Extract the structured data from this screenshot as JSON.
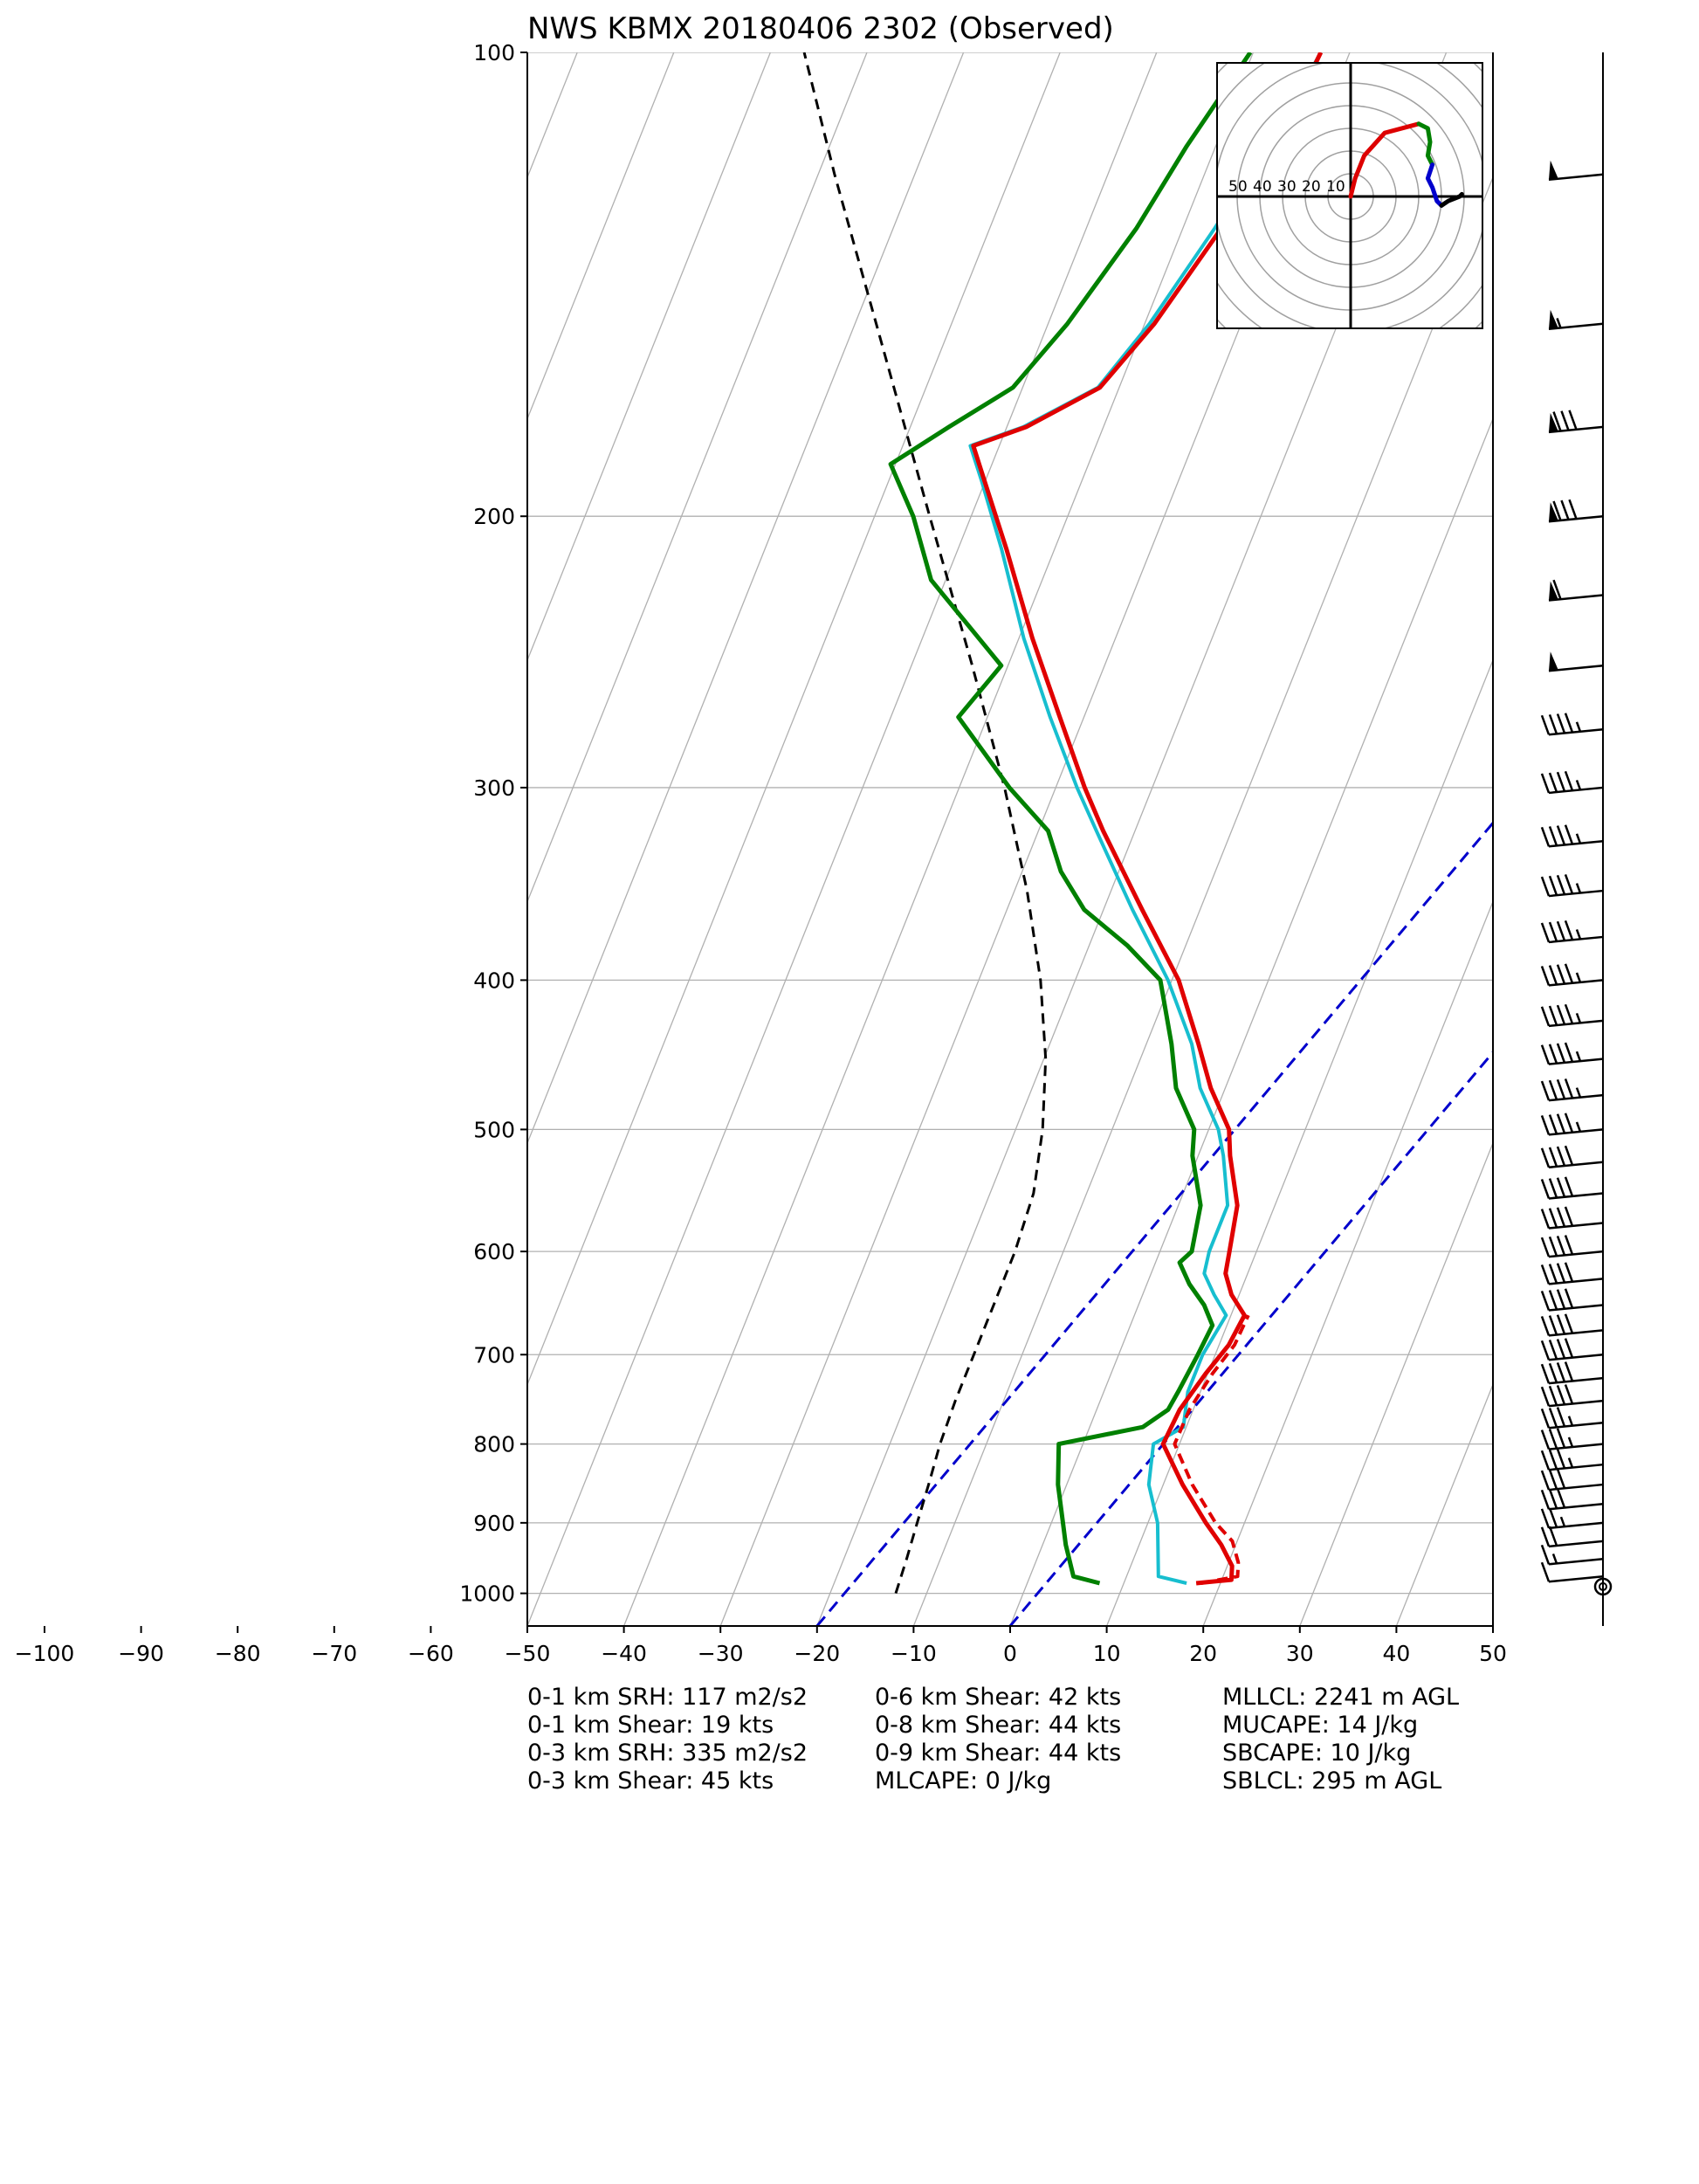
{
  "title": "NWS KBMX 20180406 2302   (Observed)",
  "chart_data": {
    "type": "skew-t",
    "title": "NWS KBMX 20180406 2302   (Observed)",
    "pressure_ticks": [
      100,
      200,
      300,
      400,
      500,
      600,
      700,
      800,
      900,
      1000
    ],
    "temperature_ticks": [
      -100,
      -90,
      -80,
      -70,
      -60,
      -50,
      -40,
      -30,
      -20,
      -10,
      0,
      10,
      20,
      30,
      40,
      50
    ],
    "plot_xlim": [
      -50,
      50
    ],
    "plot_ylim": [
      1050,
      100
    ],
    "grid": true,
    "temperature_profile": [
      [
        985,
        17.5
      ],
      [
        980,
        21.0
      ],
      [
        960,
        20.5
      ],
      [
        930,
        18.5
      ],
      [
        900,
        16.0
      ],
      [
        850,
        12.0
      ],
      [
        800,
        8.3
      ],
      [
        760,
        8.6
      ],
      [
        720,
        9.8
      ],
      [
        690,
        11.0
      ],
      [
        660,
        11.4
      ],
      [
        640,
        9.2
      ],
      [
        620,
        7.7
      ],
      [
        600,
        7.2
      ],
      [
        560,
        6.1
      ],
      [
        520,
        3.3
      ],
      [
        500,
        2.1
      ],
      [
        470,
        -1.5
      ],
      [
        440,
        -4.6
      ],
      [
        400,
        -9.3
      ],
      [
        360,
        -16.0
      ],
      [
        320,
        -23.3
      ],
      [
        300,
        -27.0
      ],
      [
        270,
        -32.5
      ],
      [
        240,
        -38.6
      ],
      [
        210,
        -45.0
      ],
      [
        190,
        -50.0
      ],
      [
        180,
        -52.7
      ],
      [
        175,
        -48.0
      ],
      [
        165,
        -42.0
      ],
      [
        150,
        -39.0
      ],
      [
        130,
        -36.0
      ],
      [
        110,
        -33.5
      ],
      [
        100,
        -33.0
      ]
    ],
    "virtual_temperature_profile": [
      [
        985,
        18.0
      ],
      [
        975,
        21.5
      ],
      [
        955,
        21.0
      ],
      [
        925,
        19.5
      ],
      [
        900,
        17.0
      ],
      [
        850,
        13.0
      ],
      [
        800,
        9.5
      ],
      [
        760,
        9.6
      ],
      [
        720,
        10.5
      ],
      [
        690,
        11.6
      ],
      [
        660,
        11.8
      ]
    ],
    "wetbulb_profile": [
      [
        985,
        16.5
      ],
      [
        975,
        13.3
      ],
      [
        900,
        11.0
      ],
      [
        850,
        8.5
      ],
      [
        800,
        7.3
      ],
      [
        780,
        9.7
      ],
      [
        740,
        8.7
      ],
      [
        700,
        8.7
      ],
      [
        660,
        9.5
      ],
      [
        640,
        7.4
      ],
      [
        620,
        5.5
      ],
      [
        600,
        5.1
      ],
      [
        560,
        5.1
      ],
      [
        520,
        2.6
      ],
      [
        500,
        1.0
      ],
      [
        470,
        -2.6
      ],
      [
        440,
        -5.3
      ],
      [
        400,
        -10.4
      ],
      [
        360,
        -17.0
      ],
      [
        320,
        -24.0
      ],
      [
        300,
        -27.8
      ],
      [
        270,
        -33.5
      ],
      [
        240,
        -39.5
      ],
      [
        210,
        -45.5
      ],
      [
        190,
        -50.3
      ],
      [
        180,
        -53.0
      ],
      [
        175,
        -48.3
      ],
      [
        165,
        -42.2
      ],
      [
        150,
        -39.5
      ],
      [
        130,
        -36.7
      ],
      [
        110,
        -34.0
      ],
      [
        100,
        -33.0
      ]
    ],
    "dewpoint_profile": [
      [
        985,
        7.5
      ],
      [
        975,
        4.5
      ],
      [
        930,
        2.4
      ],
      [
        900,
        1.2
      ],
      [
        850,
        -0.9
      ],
      [
        800,
        -2.5
      ],
      [
        780,
        5.5
      ],
      [
        760,
        7.4
      ],
      [
        740,
        7.7
      ],
      [
        700,
        8.2
      ],
      [
        670,
        8.5
      ],
      [
        650,
        6.8
      ],
      [
        630,
        4.4
      ],
      [
        610,
        2.5
      ],
      [
        600,
        3.3
      ],
      [
        560,
        2.3
      ],
      [
        520,
        -0.6
      ],
      [
        500,
        -1.5
      ],
      [
        470,
        -5.1
      ],
      [
        440,
        -7.4
      ],
      [
        400,
        -11.2
      ],
      [
        380,
        -16.0
      ],
      [
        360,
        -22.0
      ],
      [
        340,
        -26.0
      ],
      [
        320,
        -29.0
      ],
      [
        300,
        -34.8
      ],
      [
        270,
        -43.0
      ],
      [
        250,
        -40.7
      ],
      [
        220,
        -51.5
      ],
      [
        200,
        -56.0
      ],
      [
        185,
        -60.5
      ],
      [
        175,
        -56.0
      ],
      [
        165,
        -51.0
      ],
      [
        150,
        -48.0
      ],
      [
        130,
        -44.8
      ],
      [
        115,
        -43.0
      ],
      [
        100,
        -40.3
      ]
    ],
    "parcel_profile": [
      [
        1000,
        -13.2
      ],
      [
        950,
        -13.5
      ],
      [
        900,
        -13.9
      ],
      [
        850,
        -14.3
      ],
      [
        800,
        -14.8
      ],
      [
        750,
        -15.0
      ],
      [
        700,
        -15.0
      ],
      [
        650,
        -15.0
      ],
      [
        600,
        -15.0
      ],
      [
        550,
        -15.5
      ],
      [
        500,
        -17.2
      ],
      [
        450,
        -19.8
      ],
      [
        400,
        -23.6
      ],
      [
        350,
        -28.7
      ],
      [
        300,
        -35.3
      ],
      [
        250,
        -43.7
      ],
      [
        200,
        -54.3
      ],
      [
        150,
        -67.8
      ],
      [
        120,
        -78.3
      ],
      [
        100,
        -86.5
      ]
    ],
    "dry_adiabat_reference_lines": [
      {
        "name": "blue-dashed-left",
        "points": [
          [
            1050,
            -20
          ],
          [
            100,
            52
          ]
        ]
      },
      {
        "name": "blue-dashed-right",
        "points": [
          [
            1050,
            0
          ],
          [
            100,
            72
          ]
        ]
      }
    ],
    "hodograph": {
      "ring_labels": [
        "50",
        "40",
        "30",
        "20",
        "10"
      ],
      "segments": [
        {
          "color": "#dd0000",
          "points": [
            [
              0,
              0
            ],
            [
              2,
              8
            ],
            [
              6,
              18
            ],
            [
              15,
              28
            ],
            [
              30,
              32
            ]
          ]
        },
        {
          "color": "#008000",
          "points": [
            [
              30,
              32
            ],
            [
              34,
              30
            ],
            [
              35,
              24
            ],
            [
              34,
              18
            ],
            [
              36,
              14
            ]
          ]
        },
        {
          "color": "#0000cc",
          "points": [
            [
              36,
              14
            ],
            [
              34,
              8
            ],
            [
              36,
              4
            ],
            [
              38,
              -2
            ],
            [
              40,
              -4
            ]
          ]
        },
        {
          "color": "#000000",
          "points": [
            [
              40,
              -4
            ],
            [
              43,
              -2
            ],
            [
              48,
              0
            ],
            [
              49,
              1
            ]
          ]
        }
      ]
    },
    "wind_barbs": [
      {
        "p": 120,
        "speed": 50
      },
      {
        "p": 150,
        "speed": 55
      },
      {
        "p": 175,
        "speed": 80
      },
      {
        "p": 200,
        "speed": 80
      },
      {
        "p": 225,
        "speed": 60
      },
      {
        "p": 250,
        "speed": 50
      },
      {
        "p": 275,
        "speed": 45
      },
      {
        "p": 300,
        "speed": 45
      },
      {
        "p": 325,
        "speed": 45
      },
      {
        "p": 350,
        "speed": 45
      },
      {
        "p": 375,
        "speed": 45
      },
      {
        "p": 400,
        "speed": 45
      },
      {
        "p": 425,
        "speed": 45
      },
      {
        "p": 450,
        "speed": 45
      },
      {
        "p": 475,
        "speed": 45
      },
      {
        "p": 500,
        "speed": 45
      },
      {
        "p": 525,
        "speed": 40
      },
      {
        "p": 550,
        "speed": 40
      },
      {
        "p": 575,
        "speed": 40
      },
      {
        "p": 600,
        "speed": 40
      },
      {
        "p": 625,
        "speed": 40
      },
      {
        "p": 650,
        "speed": 40
      },
      {
        "p": 675,
        "speed": 40
      },
      {
        "p": 700,
        "speed": 40
      },
      {
        "p": 725,
        "speed": 40
      },
      {
        "p": 750,
        "speed": 40
      },
      {
        "p": 775,
        "speed": 35
      },
      {
        "p": 800,
        "speed": 35
      },
      {
        "p": 825,
        "speed": 35
      },
      {
        "p": 850,
        "speed": 30
      },
      {
        "p": 875,
        "speed": 30
      },
      {
        "p": 900,
        "speed": 25
      },
      {
        "p": 925,
        "speed": 20
      },
      {
        "p": 950,
        "speed": 15
      },
      {
        "p": 975,
        "speed": 10
      },
      {
        "p": 990,
        "speed": 0
      }
    ]
  },
  "stats": {
    "col1": [
      "0-1 km SRH: 117 m2/s2",
      "0-1 km Shear: 19 kts",
      "0-3 km SRH: 335 m2/s2",
      "0-3 km Shear: 45 kts"
    ],
    "col2": [
      "0-6 km Shear: 42 kts",
      "0-8 km Shear: 44 kts",
      "0-9 km Shear: 44 kts",
      "MLCAPE: 0 J/kg"
    ],
    "col3": [
      "MLLCL: 2241 m AGL",
      "MUCAPE: 14 J/kg",
      "SBCAPE: 10 J/kg",
      "SBLCL: 295 m AGL"
    ]
  },
  "colors": {
    "temperature": "#e00000",
    "virtual_temperature": "#e00000",
    "wetbulb": "#17becf",
    "dewpoint": "#008000",
    "parcel": "#000000",
    "reference_lines": "#0000cc",
    "grid": "#b0b0b0"
  }
}
